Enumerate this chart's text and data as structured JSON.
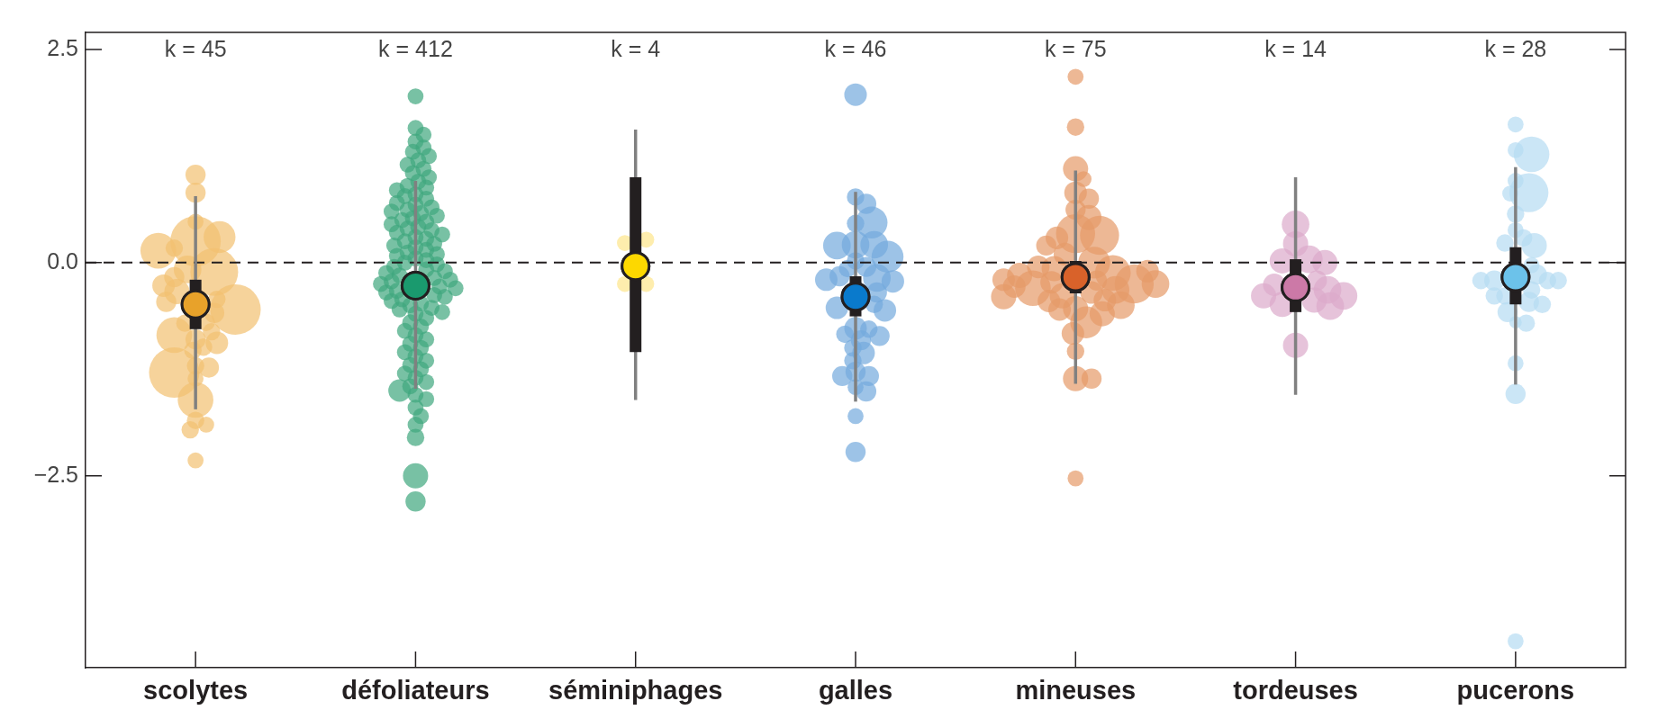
{
  "chart_data": {
    "type": "box",
    "categories": [
      "scolytes",
      "défoliateurs",
      "séminiphages",
      "galles",
      "mineuses",
      "tordeuses",
      "pucerons"
    ],
    "ylim": [
      -4.75,
      2.7
    ],
    "yticks": [
      {
        "value": -2.5,
        "label": "−2.5"
      },
      {
        "value": 0,
        "label": "0.0"
      },
      2.5
    ],
    "grid": false,
    "legend": false,
    "ref_lines": [
      {
        "axis": "y",
        "value": 0,
        "color": "#231f20",
        "line_style": "dashed"
      }
    ],
    "annotations": [
      "k = 45",
      "k = 412",
      "k = 4",
      "k = 46",
      "k = 75",
      "k = 14",
      "k = 28"
    ],
    "series": [
      {
        "type": "bubble",
        "color": "#f2c071",
        "x": [
          "scolytes",
          "scolytes",
          "scolytes",
          "scolytes",
          "scolytes",
          "scolytes",
          "scolytes",
          "scolytes",
          "scolytes",
          "scolytes",
          "scolytes",
          "scolytes",
          "scolytes",
          "scolytes",
          "scolytes",
          "scolytes",
          "scolytes",
          "scolytes",
          "scolytes",
          "scolytes",
          "scolytes",
          "scolytes",
          "scolytes",
          "scolytes",
          "scolytes",
          "scolytes",
          "scolytes",
          "scolytes",
          "scolytes",
          "scolytes",
          "scolytes",
          "scolytes",
          "scolytes"
        ],
        "values": [
          1.03,
          0.82,
          0.48,
          0.25,
          0.3,
          0.17,
          0.14,
          -0.11,
          -0.08,
          -0.17,
          -0.27,
          -0.34,
          -0.43,
          -0.46,
          -0.55,
          -0.59,
          -0.7,
          -0.71,
          -0.81,
          -0.85,
          -0.9,
          -0.94,
          -0.99,
          -1.03,
          -1.21,
          -1.23,
          -1.29,
          -1.36,
          -1.61,
          -1.85,
          -1.9,
          -1.96,
          -2.32
        ],
        "sizes": [
          0.16,
          0.16,
          0.1,
          1,
          0.4,
          0.12,
          0.5,
          0.9,
          0.3,
          0.16,
          0.2,
          0.25,
          0.12,
          0.16,
          1,
          0.16,
          0.12,
          0.12,
          0.12,
          0.5,
          0.16,
          0.2,
          0.12,
          0.12,
          0.12,
          0.16,
          1,
          0.1,
          0.5,
          0.12,
          0.1,
          0.12,
          0.1
        ]
      },
      {
        "type": "bubble",
        "color": "#3ea67e",
        "x": [
          "défoliateurs",
          "défoliateurs",
          "défoliateurs",
          "défoliateurs",
          "défoliateurs",
          "défoliateurs",
          "défoliateurs",
          "défoliateurs",
          "défoliateurs",
          "défoliateurs",
          "défoliateurs",
          "défoliateurs",
          "défoliateurs",
          "défoliateurs",
          "défoliateurs",
          "défoliateurs",
          "défoliateurs",
          "défoliateurs",
          "défoliateurs",
          "défoliateurs",
          "défoliateurs",
          "défoliateurs",
          "défoliateurs",
          "défoliateurs",
          "défoliateurs",
          "défoliateurs",
          "défoliateurs",
          "défoliateurs",
          "défoliateurs",
          "défoliateurs",
          "défoliateurs",
          "défoliateurs",
          "défoliateurs",
          "défoliateurs",
          "défoliateurs",
          "défoliateurs",
          "défoliateurs",
          "défoliateurs",
          "défoliateurs",
          "défoliateurs",
          "défoliateurs",
          "défoliateurs",
          "défoliateurs",
          "défoliateurs",
          "défoliateurs",
          "défoliateurs",
          "défoliateurs",
          "défoliateurs",
          "défoliateurs",
          "défoliateurs",
          "défoliateurs",
          "défoliateurs",
          "défoliateurs",
          "défoliateurs",
          "défoliateurs",
          "défoliateurs",
          "défoliateurs",
          "défoliateurs",
          "défoliateurs",
          "défoliateurs",
          "défoliateurs",
          "défoliateurs",
          "défoliateurs",
          "défoliateurs",
          "défoliateurs",
          "défoliateurs",
          "défoliateurs",
          "défoliateurs",
          "défoliateurs",
          "défoliateurs",
          "défoliateurs",
          "défoliateurs",
          "défoliateurs",
          "défoliateurs",
          "défoliateurs",
          "défoliateurs",
          "défoliateurs",
          "défoliateurs",
          "défoliateurs",
          "défoliateurs",
          "défoliateurs",
          "défoliateurs",
          "défoliateurs",
          "défoliateurs",
          "défoliateurs",
          "défoliateurs",
          "défoliateurs",
          "défoliateurs",
          "défoliateurs",
          "défoliateurs",
          "défoliateurs",
          "défoliateurs",
          "défoliateurs",
          "défoliateurs",
          "défoliateurs",
          "défoliateurs",
          "défoliateurs",
          "défoliateurs"
        ],
        "values": [
          1.95,
          1.58,
          1.5,
          1.42,
          1.35,
          1.3,
          1.25,
          1.2,
          1.15,
          1.1,
          1.05,
          1.0,
          0.95,
          0.9,
          0.88,
          0.85,
          0.8,
          0.78,
          0.75,
          0.7,
          0.68,
          0.65,
          0.62,
          0.6,
          0.58,
          0.55,
          0.52,
          0.5,
          0.48,
          0.45,
          0.42,
          0.4,
          0.38,
          0.35,
          0.33,
          0.3,
          0.28,
          0.25,
          0.22,
          0.2,
          0.18,
          0.15,
          0.12,
          0.1,
          0.08,
          0.05,
          0.03,
          0.0,
          -0.02,
          -0.05,
          -0.08,
          -0.1,
          -0.12,
          -0.15,
          -0.18,
          -0.2,
          -0.22,
          -0.25,
          -0.28,
          -0.3,
          -0.33,
          -0.35,
          -0.38,
          -0.4,
          -0.43,
          -0.45,
          -0.48,
          -0.5,
          -0.53,
          -0.55,
          -0.58,
          -0.6,
          -0.65,
          -0.7,
          -0.75,
          -0.8,
          -0.85,
          -0.9,
          -0.95,
          -1.0,
          -1.05,
          -1.1,
          -1.15,
          -1.2,
          -1.25,
          -1.3,
          -1.35,
          -1.4,
          -1.45,
          -1.5,
          -1.55,
          -1.6,
          -1.7,
          -1.8,
          -1.9,
          -2.05,
          -2.5,
          -2.8
        ],
        "sizes": [
          0.1,
          0.1,
          0.1,
          0.1,
          0.1,
          0.1,
          0.1,
          0.1,
          0.1,
          0.1,
          0.1,
          0.1,
          0.1,
          0.1,
          0.1,
          0.1,
          0.1,
          0.1,
          0.1,
          0.1,
          0.1,
          0.1,
          0.1,
          0.1,
          0.1,
          0.1,
          0.1,
          0.1,
          0.1,
          0.1,
          0.1,
          0.1,
          0.1,
          0.1,
          0.1,
          0.1,
          0.1,
          0.1,
          0.1,
          0.1,
          0.1,
          0.1,
          0.1,
          0.1,
          0.1,
          0.1,
          0.1,
          0.1,
          0.1,
          0.1,
          0.1,
          0.1,
          0.1,
          0.1,
          0.1,
          0.1,
          0.1,
          0.1,
          0.1,
          0.1,
          0.1,
          0.1,
          0.1,
          0.1,
          0.1,
          0.1,
          0.1,
          0.1,
          0.1,
          0.1,
          0.1,
          0.1,
          0.1,
          0.1,
          0.1,
          0.1,
          0.1,
          0.1,
          0.1,
          0.1,
          0.1,
          0.1,
          0.1,
          0.1,
          0.1,
          0.1,
          0.1,
          0.1,
          0.1,
          0.2,
          0.1,
          0.1,
          0.1,
          0.1,
          0.1,
          0.12,
          0.25,
          0.16
        ]
      },
      {
        "type": "bubble",
        "color": "#fde68a",
        "x": [
          "séminiphages",
          "séminiphages",
          "séminiphages",
          "séminiphages"
        ],
        "values": [
          0.27,
          -0.25,
          0.23,
          -0.25
        ],
        "sizes": [
          0.1,
          0.1,
          0.1,
          0.1
        ]
      },
      {
        "type": "bubble",
        "color": "#74aadd",
        "x": [
          "galles",
          "galles",
          "galles",
          "galles",
          "galles",
          "galles",
          "galles",
          "galles",
          "galles",
          "galles",
          "galles",
          "galles",
          "galles",
          "galles",
          "galles",
          "galles",
          "galles",
          "galles",
          "galles",
          "galles",
          "galles",
          "galles",
          "galles",
          "galles",
          "galles",
          "galles",
          "galles",
          "galles",
          "galles",
          "galles",
          "galles",
          "galles",
          "galles",
          "galles",
          "galles"
        ],
        "values": [
          1.97,
          0.77,
          0.69,
          0.46,
          0.47,
          0.21,
          0.21,
          0.2,
          0.07,
          0.02,
          -0.05,
          -0.07,
          -0.16,
          -0.18,
          -0.2,
          -0.22,
          -0.35,
          -0.49,
          -0.53,
          -0.56,
          -0.77,
          -0.78,
          -0.84,
          -0.86,
          -0.91,
          -1.0,
          -1.06,
          -1.15,
          -1.28,
          -1.33,
          -1.33,
          -1.46,
          -1.51,
          -1.8,
          -2.22
        ],
        "sizes": [
          0.2,
          0.12,
          0.16,
          0.12,
          0.4,
          0.3,
          0.3,
          0.3,
          0.4,
          0.12,
          0.16,
          0.12,
          0.16,
          0.3,
          0.2,
          0.2,
          0.16,
          0.12,
          0.2,
          0.2,
          0.2,
          0.12,
          0.12,
          0.16,
          0.16,
          0.12,
          0.2,
          0.12,
          0.16,
          0.16,
          0.16,
          0.1,
          0.16,
          0.1,
          0.16
        ]
      },
      {
        "type": "bubble",
        "color": "#e59a68",
        "x": [
          "mineuses",
          "mineuses",
          "mineuses",
          "mineuses",
          "mineuses",
          "mineuses",
          "mineuses",
          "mineuses",
          "mineuses",
          "mineuses",
          "mineuses",
          "mineuses",
          "mineuses",
          "mineuses",
          "mineuses",
          "mineuses",
          "mineuses",
          "mineuses",
          "mineuses",
          "mineuses",
          "mineuses",
          "mineuses",
          "mineuses",
          "mineuses",
          "mineuses",
          "mineuses",
          "mineuses",
          "mineuses",
          "mineuses",
          "mineuses",
          "mineuses",
          "mineuses",
          "mineuses",
          "mineuses",
          "mineuses",
          "mineuses",
          "mineuses",
          "mineuses",
          "mineuses",
          "mineuses",
          "mineuses",
          "mineuses"
        ],
        "values": [
          2.18,
          1.59,
          1.1,
          0.98,
          0.82,
          0.75,
          0.62,
          0.53,
          0.34,
          0.32,
          0.29,
          0.2,
          0.0,
          -0.07,
          -0.12,
          -0.21,
          -0.23,
          -0.3,
          -0.35,
          -0.39,
          -0.44,
          -0.54,
          -0.7,
          -0.83,
          -1.04,
          -1.36,
          -1.36,
          -2.53,
          -0.25,
          0.1,
          -0.05,
          -0.15,
          -0.2,
          -0.25,
          -0.28,
          -0.32,
          -0.4,
          -0.45,
          -0.5,
          -0.55,
          -0.6,
          -0.1
        ],
        "sizes": [
          0.1,
          0.12,
          0.25,
          0.1,
          0.2,
          0.16,
          0.16,
          0.25,
          0.6,
          0.6,
          0.2,
          0.16,
          0.4,
          0.25,
          0.5,
          0.16,
          0.2,
          0.5,
          0.2,
          0.25,
          0.2,
          0.25,
          0.4,
          0.2,
          0.12,
          0.25,
          0.16,
          0.1,
          0.6,
          0.2,
          0.2,
          0.25,
          0.2,
          0.3,
          0.2,
          0.3,
          0.25,
          0.2,
          0.3,
          0.2,
          0.25,
          0.2
        ]
      },
      {
        "type": "bubble",
        "color": "#dcaacb",
        "x": [
          "tordeuses",
          "tordeuses",
          "tordeuses",
          "tordeuses",
          "tordeuses",
          "tordeuses",
          "tordeuses",
          "tordeuses",
          "tordeuses",
          "tordeuses",
          "tordeuses",
          "tordeuses",
          "tordeuses",
          "tordeuses"
        ],
        "values": [
          0.45,
          0.22,
          0.04,
          0.02,
          0.0,
          -0.21,
          -0.26,
          -0.32,
          -0.39,
          -0.39,
          -0.44,
          -0.49,
          -0.51,
          -0.97
        ],
        "sizes": [
          0.3,
          0.25,
          0.3,
          0.25,
          0.25,
          0.16,
          0.2,
          0.3,
          0.25,
          0.3,
          0.25,
          0.25,
          0.3,
          0.25
        ]
      },
      {
        "type": "bubble",
        "color": "#b5dcf2",
        "x": [
          "pucerons",
          "pucerons",
          "pucerons",
          "pucerons",
          "pucerons",
          "pucerons",
          "pucerons",
          "pucerons",
          "pucerons",
          "pucerons",
          "pucerons",
          "pucerons",
          "pucerons",
          "pucerons",
          "pucerons",
          "pucerons",
          "pucerons",
          "pucerons",
          "pucerons",
          "pucerons",
          "pucerons",
          "pucerons",
          "pucerons",
          "pucerons",
          "pucerons",
          "pucerons",
          "pucerons",
          "pucerons"
        ],
        "values": [
          1.62,
          1.32,
          1.27,
          0.96,
          0.82,
          0.81,
          0.57,
          0.38,
          0.29,
          0.23,
          0.2,
          -0.03,
          -0.14,
          -0.21,
          -0.21,
          -0.21,
          -0.21,
          -0.32,
          -0.39,
          -0.39,
          -0.46,
          -0.49,
          -0.58,
          -0.7,
          -0.71,
          -1.18,
          -1.54,
          -4.44
        ],
        "sizes": [
          0.1,
          0.1,
          0.5,
          0.1,
          0.6,
          0.1,
          0.12,
          0.1,
          0.12,
          0.12,
          0.25,
          0.1,
          0.16,
          0.16,
          0.12,
          0.12,
          0.12,
          0.12,
          0.12,
          0.12,
          0.16,
          0.12,
          0.16,
          0.06,
          0.12,
          0.1,
          0.16,
          0.1
        ]
      },
      {
        "type": "scatter",
        "marker": "circle",
        "x": [
          "scolytes",
          "défoliateurs",
          "séminiphages",
          "galles",
          "mineuses",
          "tordeuses",
          "pucerons"
        ],
        "values": [
          -0.49,
          -0.27,
          -0.04,
          -0.4,
          -0.17,
          -0.29,
          -0.17
        ],
        "colors": [
          "#e8a22a",
          "#1a9a6e",
          "#fdd800",
          "#0a7acc",
          "#d9622a",
          "#cc79a7",
          "#6cc2ea"
        ]
      },
      {
        "type": "box",
        "color": "#231f20",
        "boxes": [
          {
            "low": -1.72,
            "q1": -0.78,
            "median": -0.49,
            "q3": -0.2,
            "high": 0.78
          },
          {
            "low": -1.48,
            "q1": -0.3,
            "median": -0.27,
            "q3": -0.24,
            "high": 0.96
          },
          {
            "low": -1.61,
            "q1": -1.05,
            "median": -0.04,
            "q3": 1.0,
            "high": 1.56
          },
          {
            "low": -1.63,
            "q1": -0.63,
            "median": -0.4,
            "q3": -0.16,
            "high": 0.83
          },
          {
            "low": -1.42,
            "q1": -0.36,
            "median": -0.17,
            "q3": 0.02,
            "high": 1.08
          },
          {
            "low": -1.55,
            "q1": -0.58,
            "median": -0.29,
            "q3": 0.04,
            "high": 1.0
          },
          {
            "low": -1.43,
            "q1": -0.49,
            "median": -0.17,
            "q3": 0.18,
            "high": 1.12
          }
        ]
      }
    ]
  }
}
